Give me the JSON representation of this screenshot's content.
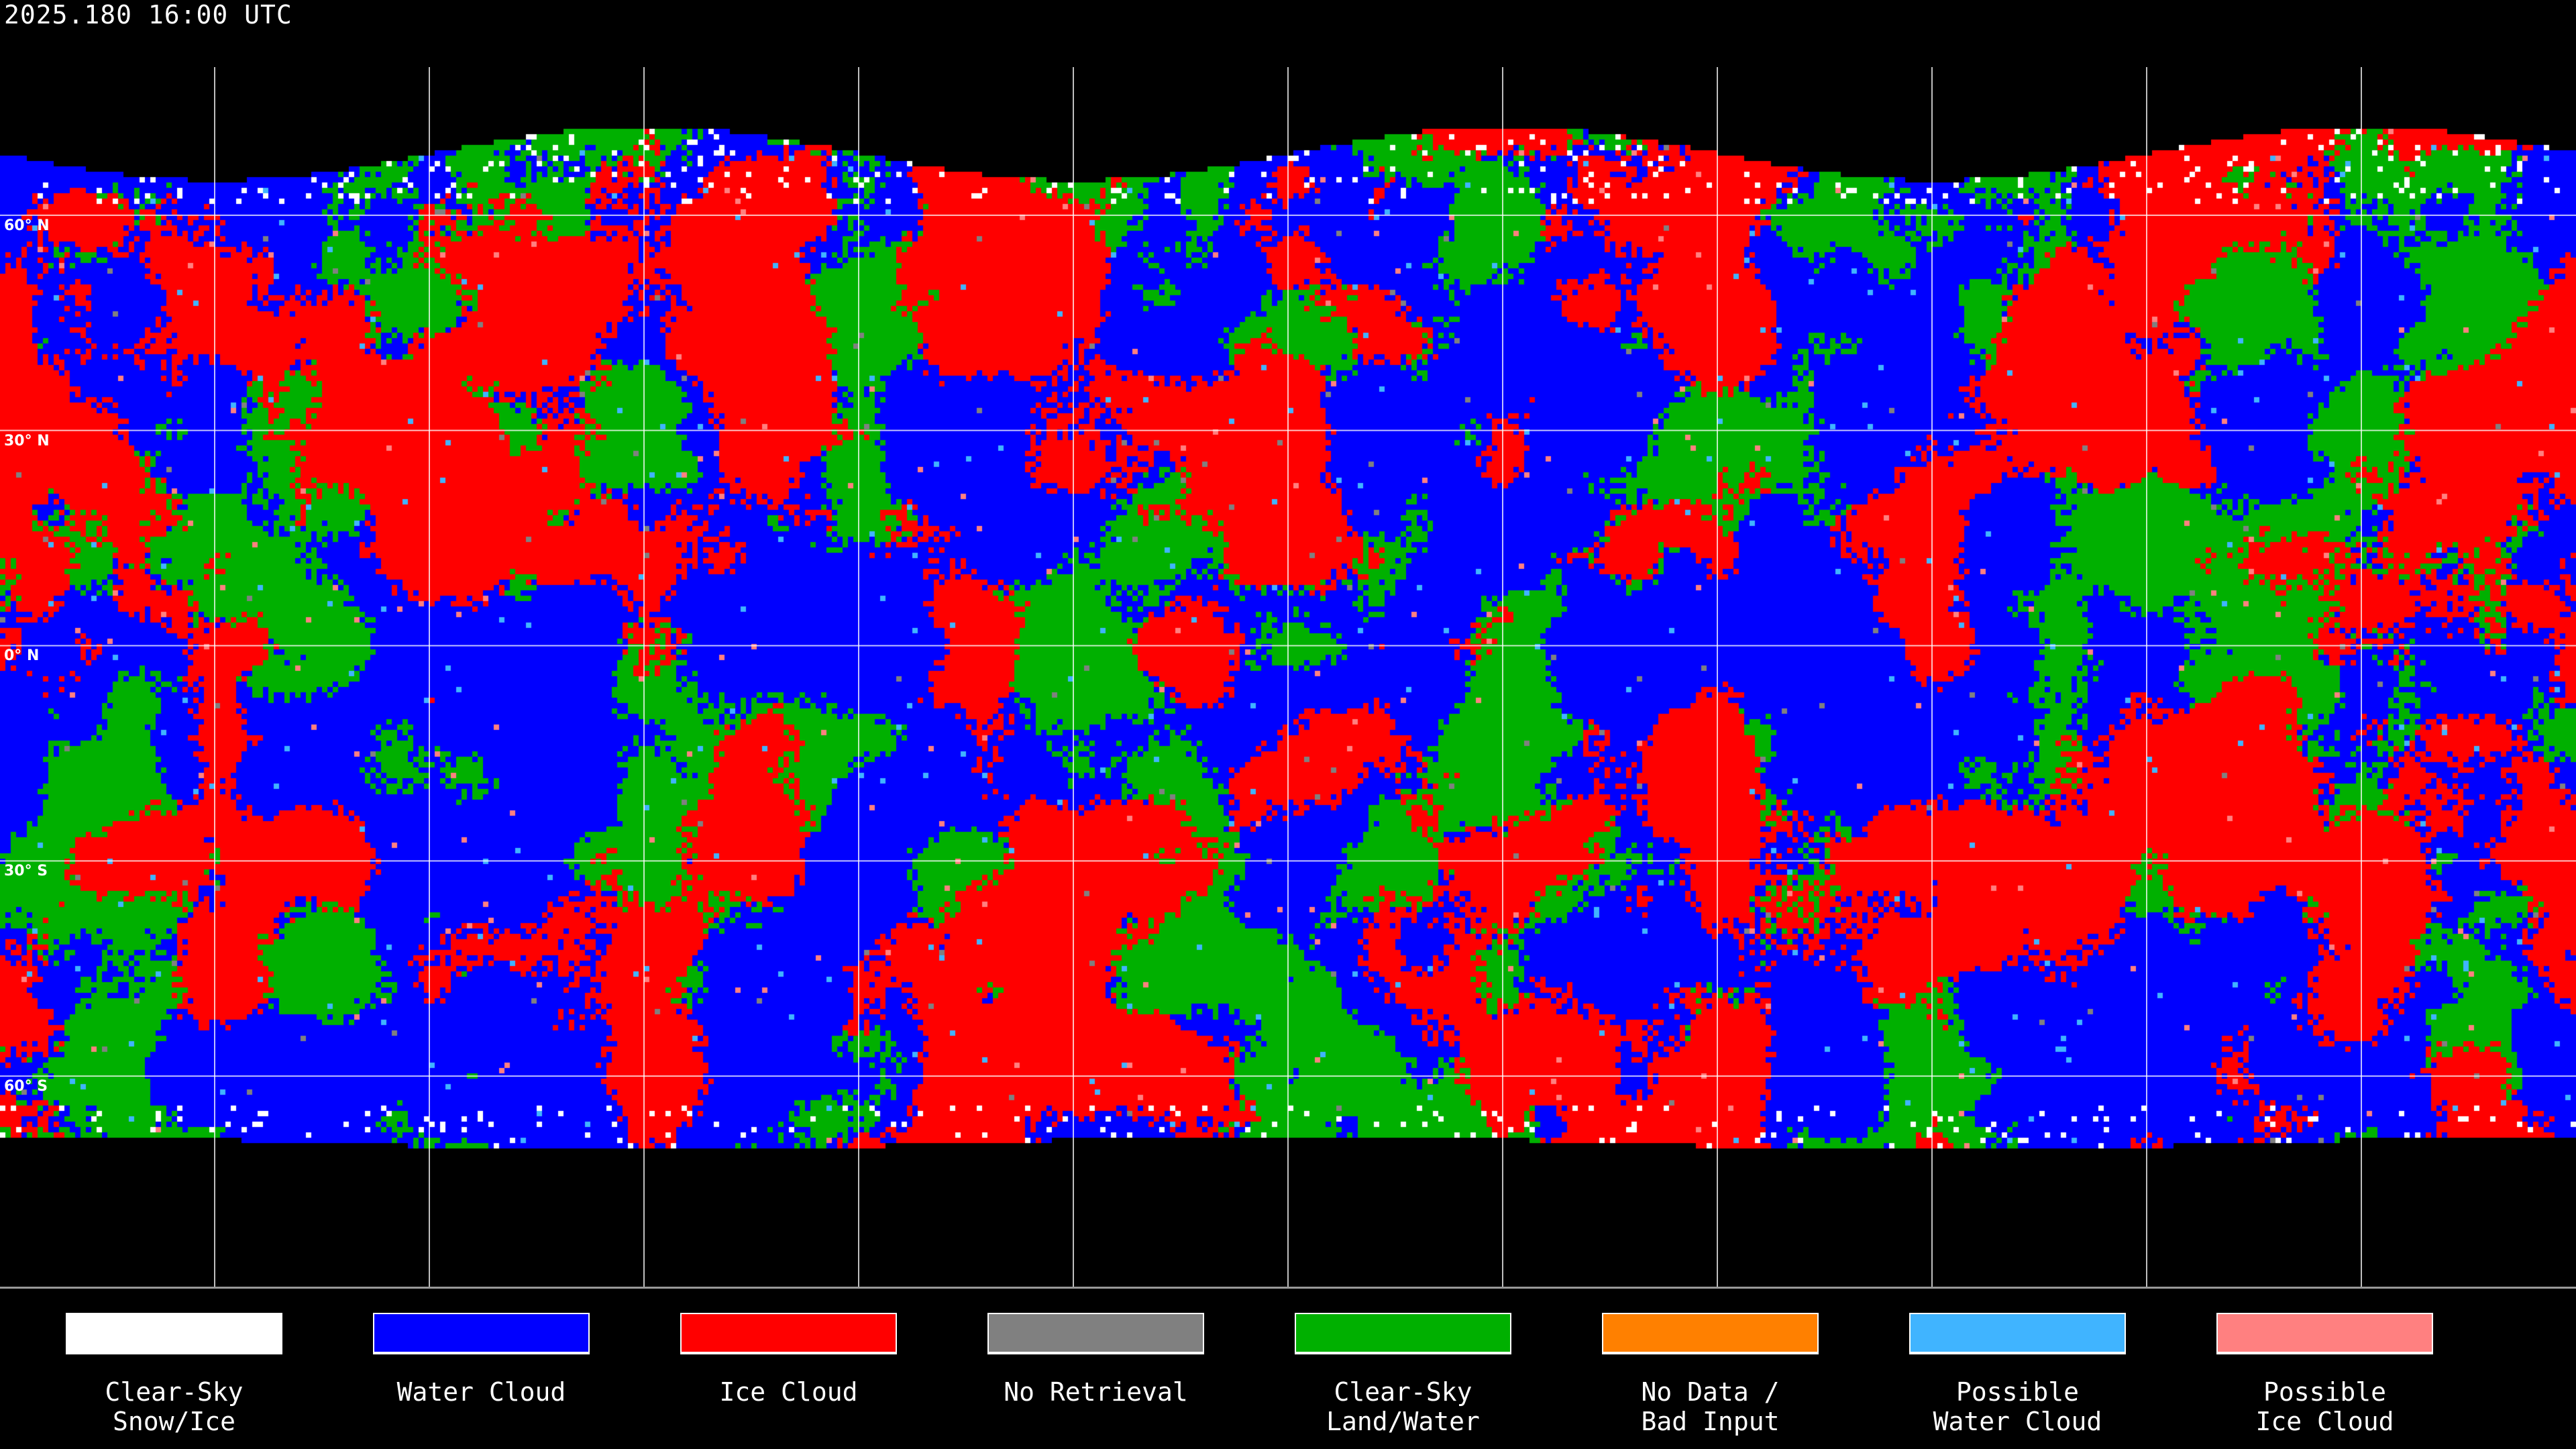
{
  "header": {
    "timestamp": "2025.180 16:00 UTC"
  },
  "map": {
    "projection": "equirectangular",
    "gridlines": true,
    "gridline_spacing_deg": 30,
    "latitude_labels": [
      "60° N",
      "30° N",
      "0° N",
      "30° S",
      "60° S"
    ],
    "coastlines": true
  },
  "legend": [
    {
      "label": "Clear-Sky\nSnow/Ice",
      "color": "#ffffff"
    },
    {
      "label": "Water Cloud",
      "color": "#0000ff"
    },
    {
      "label": "Ice Cloud",
      "color": "#ff0000"
    },
    {
      "label": "No Retrieval",
      "color": "#808080"
    },
    {
      "label": "Clear-Sky\nLand/Water",
      "color": "#00b000"
    },
    {
      "label": "No Data /\nBad Input",
      "color": "#ff8000"
    },
    {
      "label": "Possible\nWater Cloud",
      "color": "#40b4ff"
    },
    {
      "label": "Possible\nIce Cloud",
      "color": "#ff8080"
    }
  ]
}
